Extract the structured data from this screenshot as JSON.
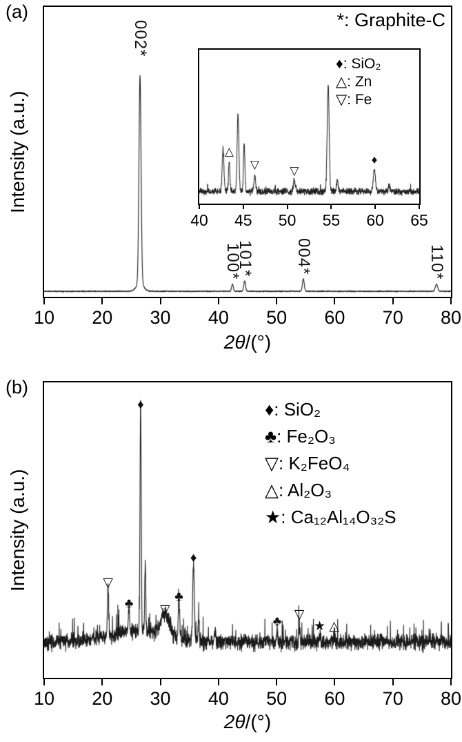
{
  "figure": {
    "panel_a": {
      "label": "(a)",
      "ylabel": "Intensity (a.u.)",
      "xlabel_var": "2θ",
      "xlabel_unit": "/(°)",
      "annotation": "*: Graphite-C"
    },
    "panel_b": {
      "label": "(b)",
      "ylabel": "Intensity (a.u.)",
      "xlabel_var": "2θ",
      "xlabel_unit": "/(°)"
    }
  },
  "colors": {
    "trace": "#1a1a1a",
    "axis": "#000000",
    "background": "#ffffff"
  },
  "chart_data": [
    {
      "id": "panel-a-main",
      "type": "line",
      "title": "(a) XRD pattern, Graphite-C",
      "xlabel": "2θ/(°)",
      "ylabel": "Intensity (a.u.)",
      "xlim": [
        10,
        80
      ],
      "ylim": [
        0,
        1.1
      ],
      "x_ticks": [
        10,
        20,
        30,
        40,
        50,
        60,
        70,
        80
      ],
      "annotation": "*: Graphite-C",
      "baseline": 0.01,
      "noise": 0.004,
      "peaks": [
        {
          "x": 26.5,
          "h": 1.0,
          "w": 0.18,
          "label": "002*",
          "label_dy": 40
        },
        {
          "x": 26.5,
          "h": 0.04,
          "w": 0.6
        },
        {
          "x": 42.4,
          "h": 0.035,
          "w": 0.15,
          "label": "100*"
        },
        {
          "x": 44.5,
          "h": 0.05,
          "w": 0.15,
          "label": "101*"
        },
        {
          "x": 54.6,
          "h": 0.06,
          "w": 0.16,
          "label": "004*"
        },
        {
          "x": 77.5,
          "h": 0.035,
          "w": 0.2,
          "label": "110*"
        }
      ]
    },
    {
      "id": "panel-a-inset",
      "type": "line",
      "title": "inset: enlarged 40-65 degree region",
      "xlim": [
        40,
        65
      ],
      "ylim": [
        0,
        1.1
      ],
      "x_ticks": [
        40,
        45,
        50,
        55,
        60,
        65
      ],
      "legend": [
        {
          "marker": "♦",
          "phase": "SiO₂",
          "text": "♦: SiO₂"
        },
        {
          "marker": "△",
          "phase": "Zn",
          "text": "△: Zn"
        },
        {
          "marker": "▽",
          "phase": "Fe",
          "text": "▽: Fe"
        }
      ],
      "baseline": 0.03,
      "noise": 0.045,
      "peaks": [
        {
          "x": 42.7,
          "h": 0.4,
          "w": 0.1
        },
        {
          "x": 43.4,
          "h": 0.28,
          "w": 0.08,
          "marker": "△"
        },
        {
          "x": 44.4,
          "h": 0.72,
          "w": 0.1
        },
        {
          "x": 45.1,
          "h": 0.45,
          "w": 0.08
        },
        {
          "x": 46.3,
          "h": 0.16,
          "w": 0.1,
          "marker": "▽"
        },
        {
          "x": 50.8,
          "h": 0.1,
          "w": 0.12,
          "marker": "▽"
        },
        {
          "x": 54.65,
          "h": 1.0,
          "w": 0.11
        },
        {
          "x": 55.7,
          "h": 0.1,
          "w": 0.09
        },
        {
          "x": 59.9,
          "h": 0.2,
          "w": 0.12,
          "marker": "♦"
        },
        {
          "x": 61.6,
          "h": 0.05,
          "w": 0.1
        }
      ]
    },
    {
      "id": "panel-b-main",
      "type": "line",
      "title": "(b) XRD pattern of residue",
      "xlabel": "2θ/(°)",
      "ylabel": "Intensity (a.u.)",
      "xlim": [
        10,
        80
      ],
      "ylim": [
        0,
        1.1
      ],
      "x_ticks": [
        10,
        20,
        30,
        40,
        50,
        60,
        70,
        80
      ],
      "legend": [
        {
          "marker": "♦",
          "phase": "SiO₂",
          "text": "♦: SiO₂"
        },
        {
          "marker": "♣",
          "phase": "Fe₂O₃",
          "text": "♣: Fe₂O₃"
        },
        {
          "marker": "▽",
          "phase": "K₂FeO₄",
          "text": "▽: K₂FeO₄"
        },
        {
          "marker": "△",
          "phase": "Al₂O₃",
          "text": "△: Al₂O₃"
        },
        {
          "marker": "★",
          "phase": "Ca₁₂Al₁₄O₃₂S",
          "text": "★: Ca₁₂Al₁₄O₃₂S"
        }
      ],
      "baseline": 0.02,
      "noise": 0.05,
      "peaks": [
        {
          "x": 21.0,
          "h": 0.22,
          "w": 0.1,
          "marker": "▽"
        },
        {
          "x": 24.6,
          "h": 0.13,
          "w": 0.1,
          "marker": "♣"
        },
        {
          "x": 26.6,
          "h": 1.0,
          "w": 0.1,
          "marker": "♦"
        },
        {
          "x": 27.4,
          "h": 0.3,
          "w": 0.09
        },
        {
          "x": 26.0,
          "h": 0.05,
          "w": 5.0
        },
        {
          "x": 30.8,
          "h": 0.1,
          "w": 0.7,
          "marker": "▽"
        },
        {
          "x": 33.2,
          "h": 0.16,
          "w": 0.12,
          "marker": "♣"
        },
        {
          "x": 35.7,
          "h": 0.33,
          "w": 0.14,
          "marker": "♦"
        },
        {
          "x": 36.6,
          "h": 0.1,
          "w": 0.1
        },
        {
          "x": 39.4,
          "h": 0.05,
          "w": 0.12
        },
        {
          "x": 50.1,
          "h": 0.05,
          "w": 0.1,
          "marker": "♣"
        },
        {
          "x": 53.9,
          "h": 0.08,
          "w": 0.09,
          "marker": "▽"
        },
        {
          "x": 57.4,
          "h": 0.03,
          "w": 0.1,
          "marker": "★"
        },
        {
          "x": 59.9,
          "h": 0.03,
          "w": 0.1,
          "marker": "△"
        },
        {
          "x": 68.0,
          "h": 0.03,
          "w": 0.1
        }
      ]
    }
  ]
}
